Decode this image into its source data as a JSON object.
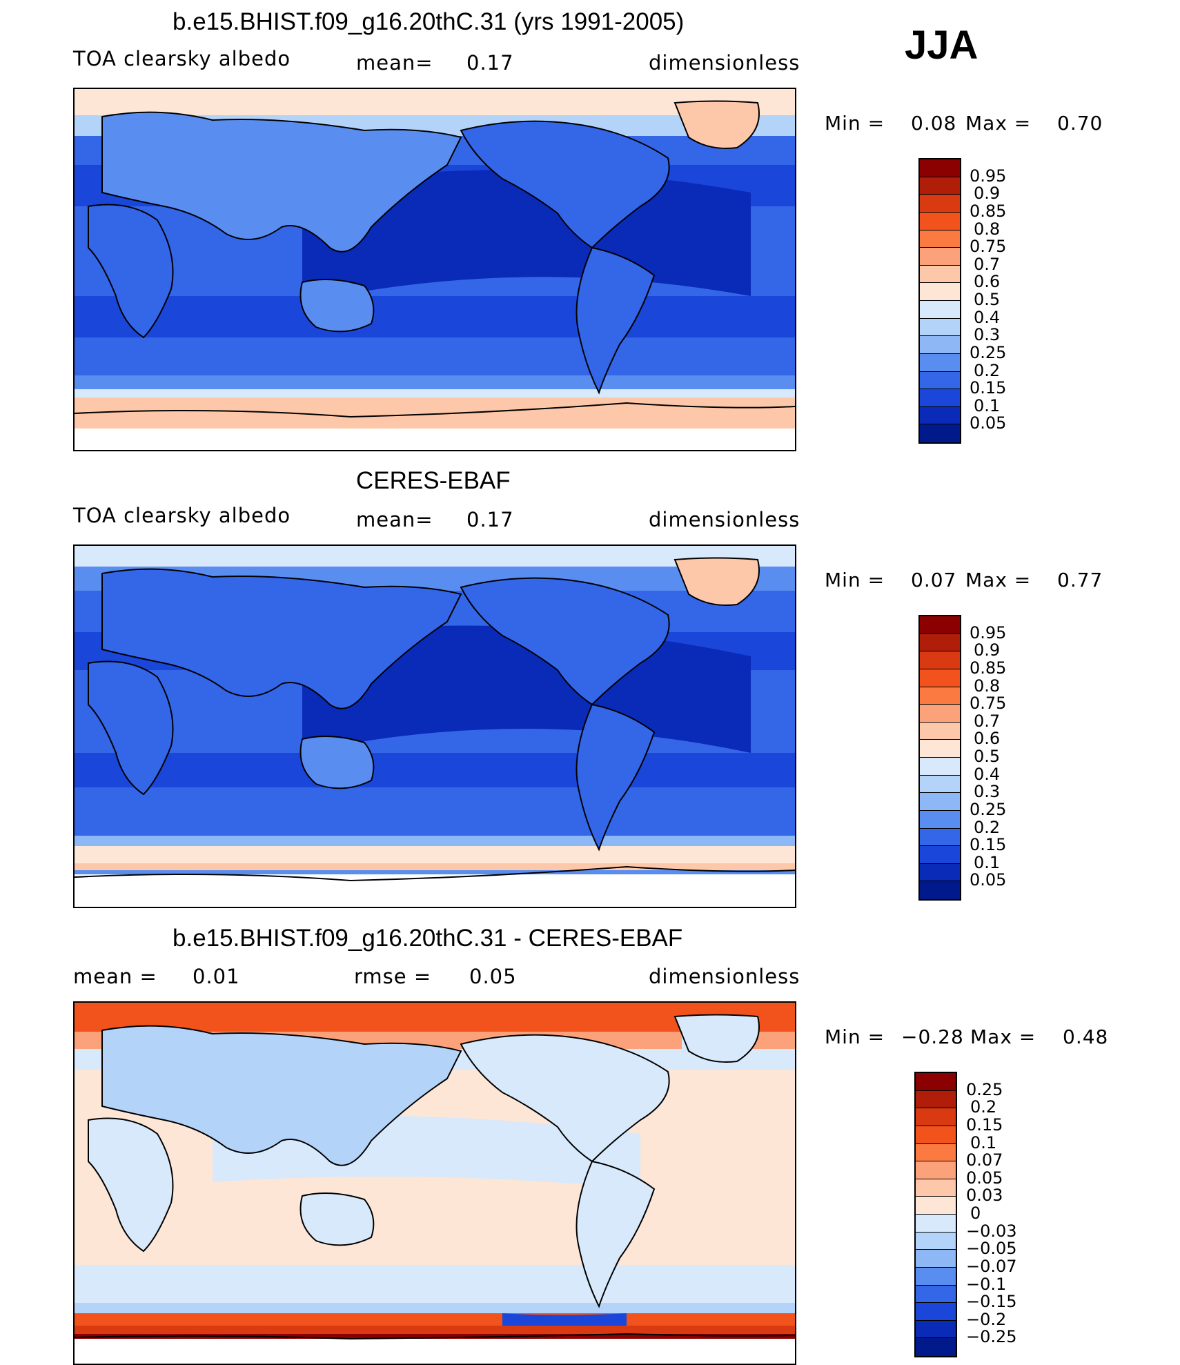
{
  "season": "JJA",
  "panels": [
    {
      "title": "b.e15.BHIST.f09_g16.20thC.31 (yrs 1991-2005)",
      "left_label": "TOA clearsky albedo",
      "mid_label": "mean=",
      "mid_value": "0.17",
      "units": "dimensionless",
      "min_label": "Min =",
      "min_value": "0.08",
      "max_label": "Max =",
      "max_value": "0.70",
      "colorbar": {
        "labels": [
          "0.95",
          "0.9",
          "0.85",
          "0.8",
          "0.75",
          "0.7",
          "0.6",
          "0.5",
          "0.4",
          "0.3",
          "0.25",
          "0.2",
          "0.15",
          "0.1",
          "0.05"
        ],
        "colors": [
          "#8b0000",
          "#b01e0a",
          "#d93a12",
          "#f2531c",
          "#fa7a42",
          "#fca27a",
          "#fdc8aa",
          "#fde6d6",
          "#d7e9fb",
          "#b3d3f8",
          "#8eb7f5",
          "#5a8df0",
          "#3466e8",
          "#1a47d9",
          "#0a2ab8",
          "#001a8c"
        ]
      },
      "map_style": "model"
    },
    {
      "title": "CERES-EBAF",
      "left_label": "TOA clearsky albedo",
      "mid_label": "mean=",
      "mid_value": "0.17",
      "units": "dimensionless",
      "min_label": "Min =",
      "min_value": "0.07",
      "max_label": "Max =",
      "max_value": "0.77",
      "colorbar": {
        "labels": [
          "0.95",
          "0.9",
          "0.85",
          "0.8",
          "0.75",
          "0.7",
          "0.6",
          "0.5",
          "0.4",
          "0.3",
          "0.25",
          "0.2",
          "0.15",
          "0.1",
          "0.05"
        ],
        "colors": [
          "#8b0000",
          "#b01e0a",
          "#d93a12",
          "#f2531c",
          "#fa7a42",
          "#fca27a",
          "#fdc8aa",
          "#fde6d6",
          "#d7e9fb",
          "#b3d3f8",
          "#8eb7f5",
          "#5a8df0",
          "#3466e8",
          "#1a47d9",
          "#0a2ab8",
          "#001a8c"
        ]
      },
      "map_style": "obs"
    },
    {
      "title": "b.e15.BHIST.f09_g16.20thC.31 - CERES-EBAF",
      "left_label": "mean =",
      "left_value": "0.01",
      "mid_label": "rmse =",
      "mid_value": "0.05",
      "units": "dimensionless",
      "min_label": "Min =",
      "min_value": "−0.28",
      "max_label": "Max =",
      "max_value": "0.48",
      "colorbar": {
        "labels": [
          "0.25",
          "0.2",
          "0.15",
          "0.1",
          "0.07",
          "0.05",
          "0.03",
          "0",
          "−0.03",
          "−0.05",
          "−0.07",
          "−0.1",
          "−0.15",
          "−0.2",
          "−0.25"
        ],
        "colors": [
          "#8b0000",
          "#b01e0a",
          "#d93a12",
          "#f2531c",
          "#fa7a42",
          "#fca27a",
          "#fdc8aa",
          "#fde6d6",
          "#d7e9fb",
          "#b3d3f8",
          "#8eb7f5",
          "#5a8df0",
          "#3466e8",
          "#1a47d9",
          "#0a2ab8",
          "#001a8c"
        ]
      },
      "map_style": "diff"
    }
  ]
}
